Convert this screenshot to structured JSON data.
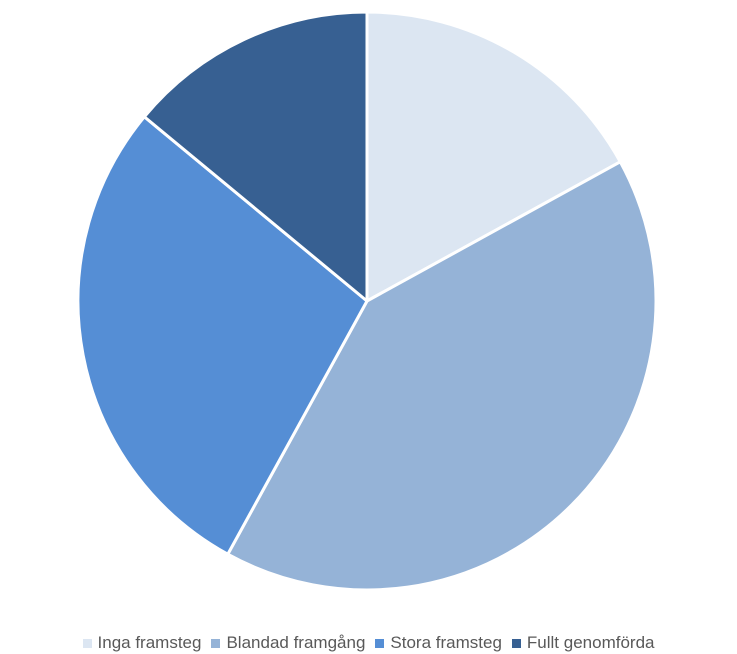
{
  "chart_data": {
    "type": "pie",
    "title": "",
    "start_angle_deg": 0,
    "direction": "clockwise",
    "legend_position": "bottom",
    "series": [
      {
        "labels": [
          "Inga framsteg",
          "Blandad framgång",
          "Stora framsteg",
          "Fullt genomförda"
        ],
        "values": [
          17,
          41,
          28,
          14
        ],
        "colors": [
          "#dce6f2",
          "#95b3d7",
          "#558ed5",
          "#376092"
        ]
      }
    ]
  }
}
